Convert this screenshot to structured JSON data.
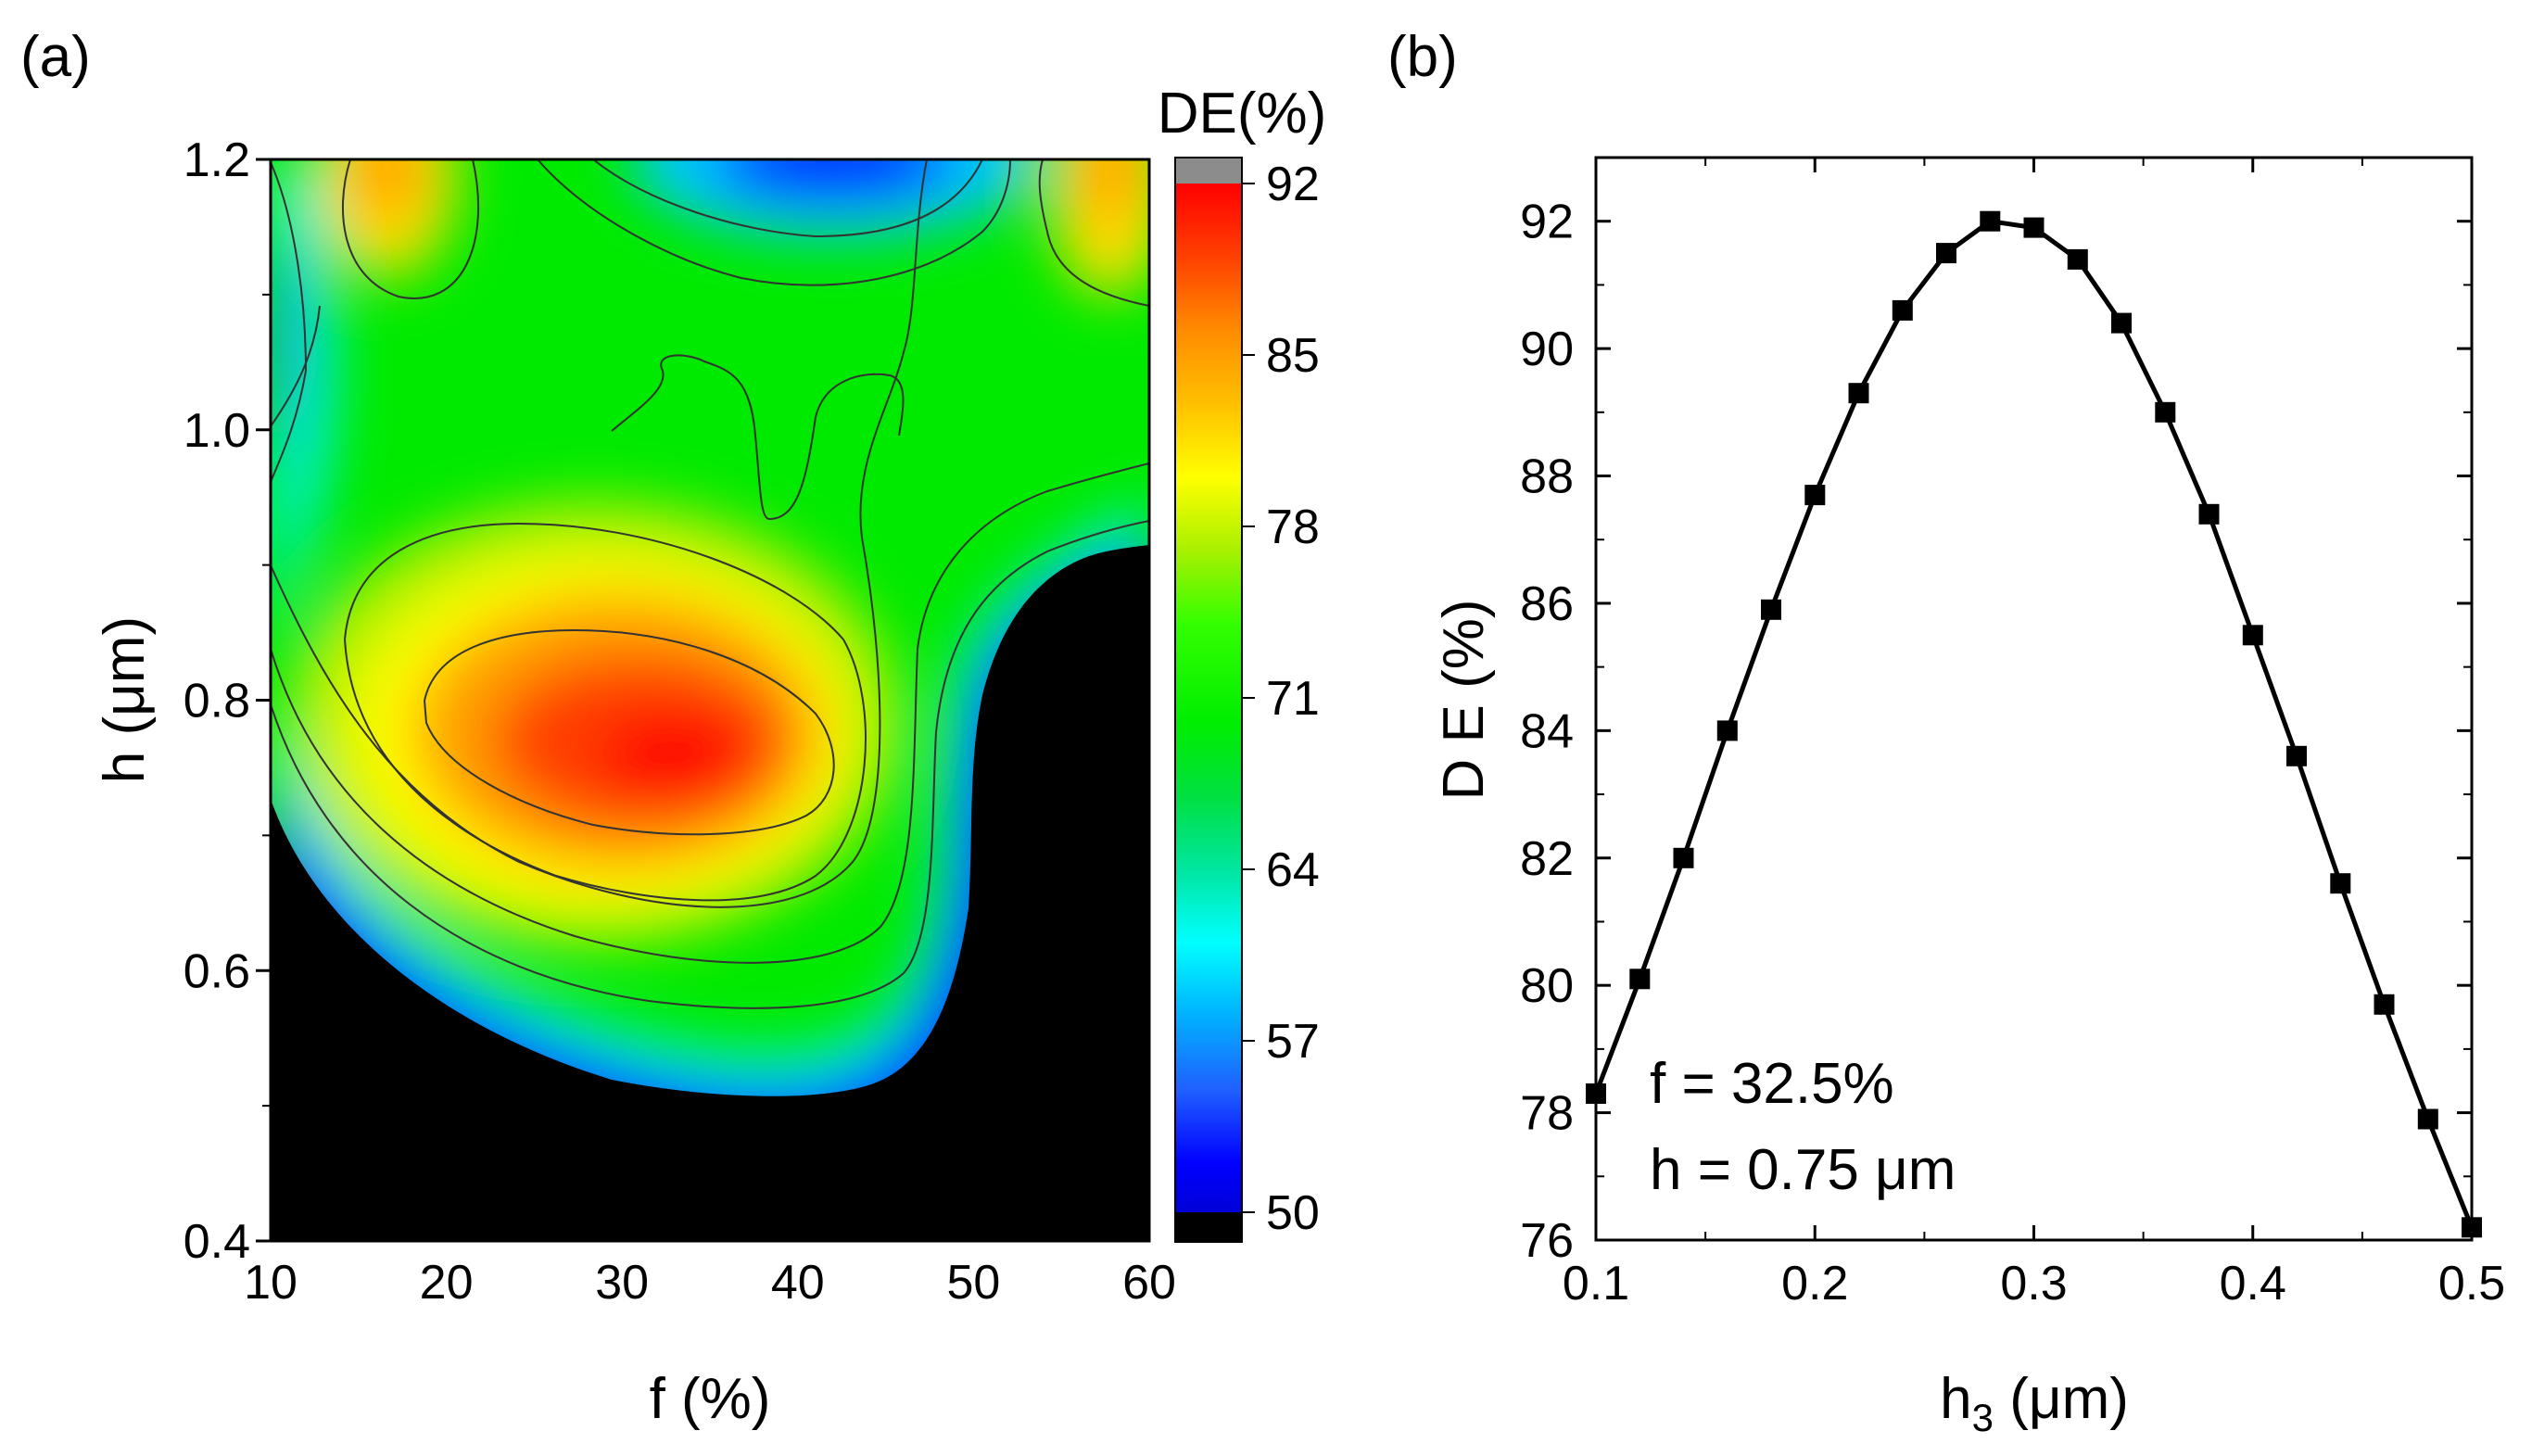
{
  "chart_data": [
    {
      "panel": "(a)",
      "type": "heatmap",
      "subtype": "filled-contour",
      "xlabel": "f (%)",
      "ylabel": "h (μm)",
      "xlim": [
        10,
        60
      ],
      "ylim": [
        0.4,
        1.2
      ],
      "xticks": [
        "10",
        "20",
        "30",
        "40",
        "50",
        "60"
      ],
      "yticks": [
        "0.4",
        "0.6",
        "0.8",
        "1.0",
        "1.2"
      ],
      "colorbar": {
        "title": "DE(%)",
        "range": [
          50,
          92
        ],
        "ticks": [
          "50",
          "57",
          "64",
          "71",
          "78",
          "85",
          "92"
        ],
        "below_color": "#000000",
        "above_color": "#8c8c8c",
        "stops": [
          [
            50,
            "#0000d8"
          ],
          [
            52,
            "#0000ff"
          ],
          [
            55,
            "#2060ff"
          ],
          [
            58,
            "#00b0ff"
          ],
          [
            61,
            "#00ffff"
          ],
          [
            64,
            "#00e6a0"
          ],
          [
            67,
            "#00e040"
          ],
          [
            70,
            "#00ee00"
          ],
          [
            74,
            "#33ff00"
          ],
          [
            77,
            "#a8f000"
          ],
          [
            80,
            "#ffff00"
          ],
          [
            83,
            "#ffc000"
          ],
          [
            86,
            "#ff8c00"
          ],
          [
            89,
            "#ff4000"
          ],
          [
            92,
            "#ff0000"
          ]
        ]
      },
      "features": [
        {
          "name": "global maximum",
          "f": 32,
          "h": 0.75,
          "value": 92
        },
        {
          "name": "local maximum",
          "f": 17,
          "h": 1.2,
          "value": 82
        },
        {
          "name": "local maximum",
          "f": 57,
          "h": 1.2,
          "value": 82
        },
        {
          "name": "local minimum",
          "f": 42,
          "h": 1.2,
          "value": 50
        },
        {
          "name": "region below 50%",
          "f_range": [
            10,
            60
          ],
          "h_range": [
            0.4,
            0.9
          ]
        }
      ]
    },
    {
      "panel": "(b)",
      "type": "line",
      "markers": "square",
      "xlabel": "h3 (μm)",
      "xlabel_main": "h",
      "xlabel_sub": "3",
      "xlabel_unit": " (μm)",
      "ylabel": "D E (%)",
      "xlim": [
        0.1,
        0.5
      ],
      "ylim": [
        76,
        93
      ],
      "xticks": [
        "0.1",
        "0.2",
        "0.3",
        "0.4",
        "0.5"
      ],
      "yticks": [
        "76",
        "78",
        "80",
        "82",
        "84",
        "86",
        "88",
        "90",
        "92"
      ],
      "x": [
        0.1,
        0.12,
        0.14,
        0.16,
        0.18,
        0.2,
        0.22,
        0.24,
        0.26,
        0.28,
        0.3,
        0.32,
        0.34,
        0.36,
        0.38,
        0.4,
        0.42,
        0.44,
        0.46,
        0.48,
        0.5
      ],
      "y": [
        78.3,
        80.1,
        82.0,
        84.0,
        85.9,
        87.7,
        89.3,
        90.6,
        91.5,
        92.0,
        91.9,
        91.4,
        90.4,
        89.0,
        87.4,
        85.5,
        83.6,
        81.6,
        79.7,
        77.9,
        76.2
      ]
    }
  ],
  "annotations": {
    "panel_a_label": "(a)",
    "panel_b_label": "(b)",
    "note_line1": "f  = 32.5%",
    "note_line2": "h = 0.75 μm"
  }
}
